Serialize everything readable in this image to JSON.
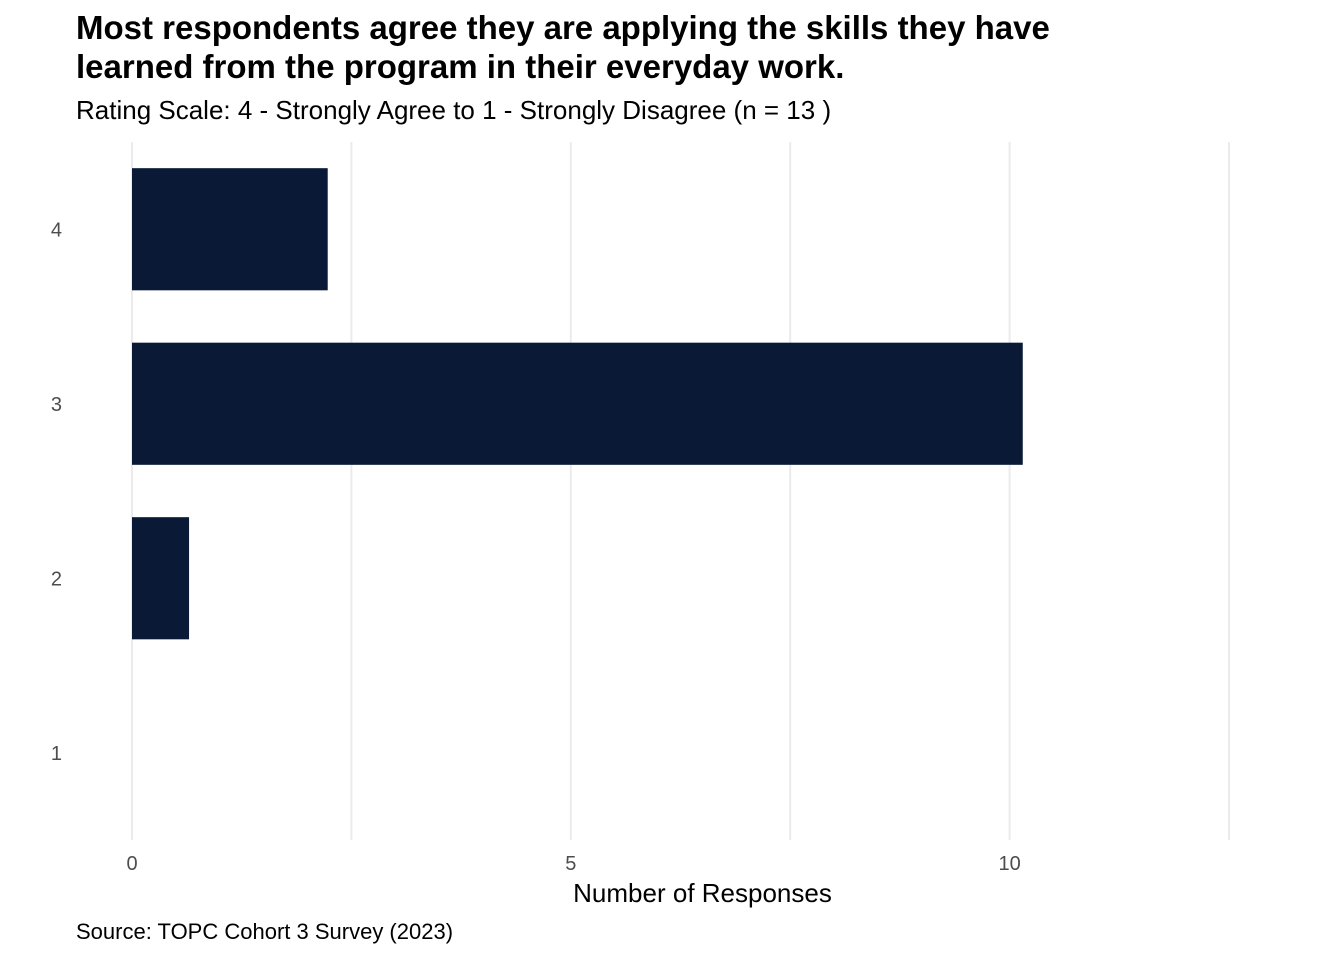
{
  "chart_data": {
    "type": "bar",
    "orientation": "horizontal",
    "title": "Most respondents agree they are applying the skills they have\nlearned from the program in their everyday work.",
    "subtitle": "Rating Scale: 4 - Strongly Agree to 1 - Strongly Disagree (n = 13 )",
    "caption": "Source: TOPC Cohort 3 Survey (2023)",
    "categories": [
      "4",
      "3",
      "2",
      "1"
    ],
    "values": [
      2.23,
      10.15,
      0.65,
      0
    ],
    "xlabel": "Number of Responses",
    "ylabel": "",
    "xlim": [
      0,
      12.5
    ],
    "x_ticks": [
      0,
      5,
      10
    ],
    "x_tick_labels": [
      "0",
      "5",
      "10"
    ],
    "x_minor_gridlines": [
      2.5,
      7.5,
      12.5
    ],
    "grid": true,
    "legend": "none",
    "bar_color": "#0a1a36",
    "grid_color": "#ebebeb"
  }
}
